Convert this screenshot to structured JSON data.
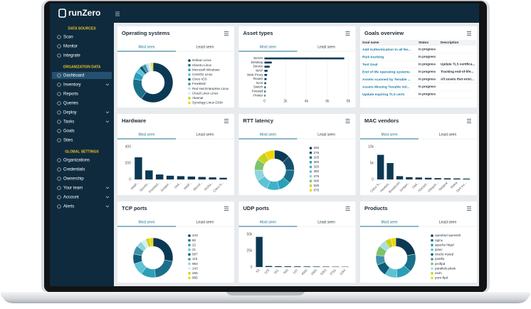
{
  "brand": "runZero",
  "sidebar": {
    "sections": [
      {
        "title": "DATA SOURCES",
        "items": [
          {
            "label": "Scan"
          },
          {
            "label": "Monitor"
          },
          {
            "label": "Integrate"
          }
        ]
      },
      {
        "title": "ORGANIZATION DATA",
        "items": [
          {
            "label": "Dashboard",
            "active": true
          },
          {
            "label": "Inventory",
            "expandable": true
          },
          {
            "label": "Reports"
          },
          {
            "label": "Queries"
          },
          {
            "label": "Deploy",
            "expandable": true
          },
          {
            "label": "Tasks",
            "expandable": true
          },
          {
            "label": "Goals"
          },
          {
            "label": "Sites"
          }
        ]
      },
      {
        "title": "GLOBAL SETTINGS",
        "items": [
          {
            "label": "Organizations"
          },
          {
            "label": "Credentials"
          },
          {
            "label": "Ownership"
          },
          {
            "label": "Your team",
            "expandable": true
          },
          {
            "label": "Account",
            "expandable": true
          },
          {
            "label": "Alerts",
            "expandable": true
          }
        ]
      }
    ]
  },
  "cards": [
    {
      "title": "Operating systems",
      "tabs": [
        "Most seen",
        "Least seen"
      ],
      "active_tab": 0,
      "chart": {
        "type": "donut",
        "categories": [
          "Debian Linux",
          "Ubuntu Linux",
          "Microsoft Windows",
          "CentOS Linux",
          "Cisco IOS",
          "FreeBSD",
          "Red Hat Enterprise Linux",
          "Cloud Linux Linux",
          "Akamai",
          "Synology Linux DSM"
        ],
        "values": [
          60,
          18,
          6,
          4,
          3,
          3,
          2,
          2,
          1,
          1
        ],
        "colors": [
          "#0b3954",
          "#1b6f8a",
          "#2a9fb8",
          "#5cc2d4",
          "#0f5b78",
          "#3f93a8",
          "#a8dde6",
          "#d6eef2",
          "#c6d31e",
          "#f2d600"
        ]
      }
    },
    {
      "title": "Asset types",
      "tabs": [
        "Most seen",
        "Least seen"
      ],
      "active_tab": 0,
      "chart": {
        "type": "hbar",
        "categories": [
          "Server",
          "Desktop",
          "Device",
          "WAP",
          "Web Proxy",
          "Router",
          "NAS",
          "Switch",
          "Firewall",
          "Printer"
        ],
        "values": [
          7600,
          700,
          500,
          300,
          250,
          200,
          150,
          120,
          100,
          80
        ],
        "color": "#0b3954",
        "xlim": [
          0,
          8000
        ],
        "xticks": [
          0,
          {
            "value": 2000,
            "label": "2k"
          },
          {
            "value": 4000,
            "label": "4k"
          },
          {
            "value": 6000,
            "label": "6k"
          },
          {
            "value": 8000,
            "label": "8k"
          }
        ]
      }
    },
    {
      "title": "Goals overview",
      "table": {
        "columns": [
          "Goal name",
          "Status",
          "Description"
        ],
        "rows": [
          {
            "name": "Add Authentication to all Re...",
            "status": "In progress"
          },
          {
            "name": "Risk tracking",
            "status": "In progress"
          },
          {
            "name": "Test Goal",
            "status": "In progress",
            "description": "Update TLS certifica..."
          },
          {
            "name": "End of life operating systems",
            "status": "In progress",
            "description": "Tracking end-of-life..."
          },
          {
            "name": "Assets scanned by Tenable ...",
            "status": "In progress",
            "description": "All assets that exist..."
          },
          {
            "name": "Assets Missing Tenable Vul...",
            "status": "In progress"
          },
          {
            "name": "Update expiring TLS certs",
            "status": "In progress"
          }
        ]
      }
    },
    {
      "title": "Hardware",
      "tabs": [
        "Most seen",
        "Least seen"
      ],
      "active_tab": 0,
      "chart": {
        "type": "bar",
        "categories": [
          "INNF...",
          "Synolo...",
          "Freebsd...",
          "Juniper...",
          "Dell...",
          "INNF...",
          "Microf...",
          "Aruba...",
          "Cisco A..."
        ],
        "values": [
          270,
          110,
          60,
          45,
          40,
          35,
          30,
          25,
          20
        ],
        "color": "#0b3954",
        "ylim": [
          0,
          400
        ],
        "yticks": [
          0,
          200,
          400
        ]
      }
    },
    {
      "title": "RTT latency",
      "tabs": [
        "Most seen",
        "Least seen"
      ],
      "active_tab": 0,
      "chart": {
        "type": "donut",
        "categories": [
          "250",
          "275",
          "225",
          "300",
          "325",
          "350",
          "375",
          "400",
          "525",
          "675"
        ],
        "values": [
          13,
          12,
          11,
          10,
          10,
          10,
          9,
          9,
          8,
          8
        ],
        "colors": [
          "#0b3954",
          "#14506e",
          "#1b6f8a",
          "#2a9fb8",
          "#3fb1c6",
          "#5cc2d4",
          "#8fd4de",
          "#7dc36b",
          "#c6d31e",
          "#f2d600"
        ]
      }
    },
    {
      "title": "MAC vendors",
      "tabs": [
        "Most seen",
        "Least seen"
      ],
      "active_tab": 0,
      "chart": {
        "type": "bar",
        "categories": [
          "Cisco S...",
          "Hewlett...",
          "Broadcom",
          "Juniper...",
          "Dell...",
          "TEKNO...",
          "Ubiquiti...",
          "Netgear",
          "Nokia",
          "Dell Inc..."
        ],
        "values": [
          7500,
          5000,
          1000,
          700,
          600,
          500,
          400,
          350,
          300,
          250
        ],
        "color": "#0b3954",
        "ylim": [
          0,
          10000
        ],
        "yticks": [
          0,
          {
            "value": 5000,
            "label": "5k"
          },
          {
            "value": 10000,
            "label": "10k"
          }
        ]
      }
    },
    {
      "title": "TCP ports",
      "tabs": [
        "Most seen",
        "Least seen"
      ],
      "active_tab": 0,
      "chart": {
        "type": "donut",
        "categories": [
          "443",
          "80",
          "22",
          "21",
          "587",
          "110",
          "993",
          "143",
          "465",
          "995"
        ],
        "values": [
          28,
          20,
          12,
          10,
          8,
          7,
          5,
          4,
          3,
          3
        ],
        "colors": [
          "#0b3954",
          "#1b6f8a",
          "#2a9fb8",
          "#5cc2d4",
          "#0f5b78",
          "#3f93a8",
          "#8fd4de",
          "#d6eef2",
          "#c6d31e",
          "#f2d600"
        ]
      }
    },
    {
      "title": "UDP ports",
      "tabs": [
        "Most seen",
        "Least seen"
      ],
      "active_tab": 0,
      "chart": {
        "type": "bar",
        "categories": [
          "53",
          "123",
          "161",
          "500",
          "137",
          "4500",
          "1900",
          "5353",
          "3702",
          "1194"
        ],
        "values": [
          46000,
          1500,
          1200,
          1000,
          900,
          800,
          700,
          600,
          500,
          400
        ],
        "color": "#0b3954",
        "ylim": [
          0,
          50000
        ],
        "yticks": [
          0,
          {
            "value": 25000,
            "label": "25k"
          },
          {
            "value": 50000,
            "label": "50k"
          }
        ]
      }
    },
    {
      "title": "Products",
      "tabs": [
        "Most seen",
        "Least seen"
      ],
      "active_tab": 0,
      "chart": {
        "type": "donut",
        "categories": [
          "openbsd openssh",
          "nginx",
          "apache httpd",
          "ipsec",
          "oracle mysql",
          "postfix",
          "proftpd",
          "parallels plesk",
          "exim",
          "pure-ftpd"
        ],
        "values": [
          22,
          15,
          12,
          10,
          10,
          8,
          8,
          6,
          5,
          4
        ],
        "colors": [
          "#0b3954",
          "#1b6f8a",
          "#2a9fb8",
          "#5cc2d4",
          "#0f5b78",
          "#3f93a8",
          "#7dc36b",
          "#a8dde6",
          "#c6d31e",
          "#f2d600"
        ]
      }
    }
  ]
}
